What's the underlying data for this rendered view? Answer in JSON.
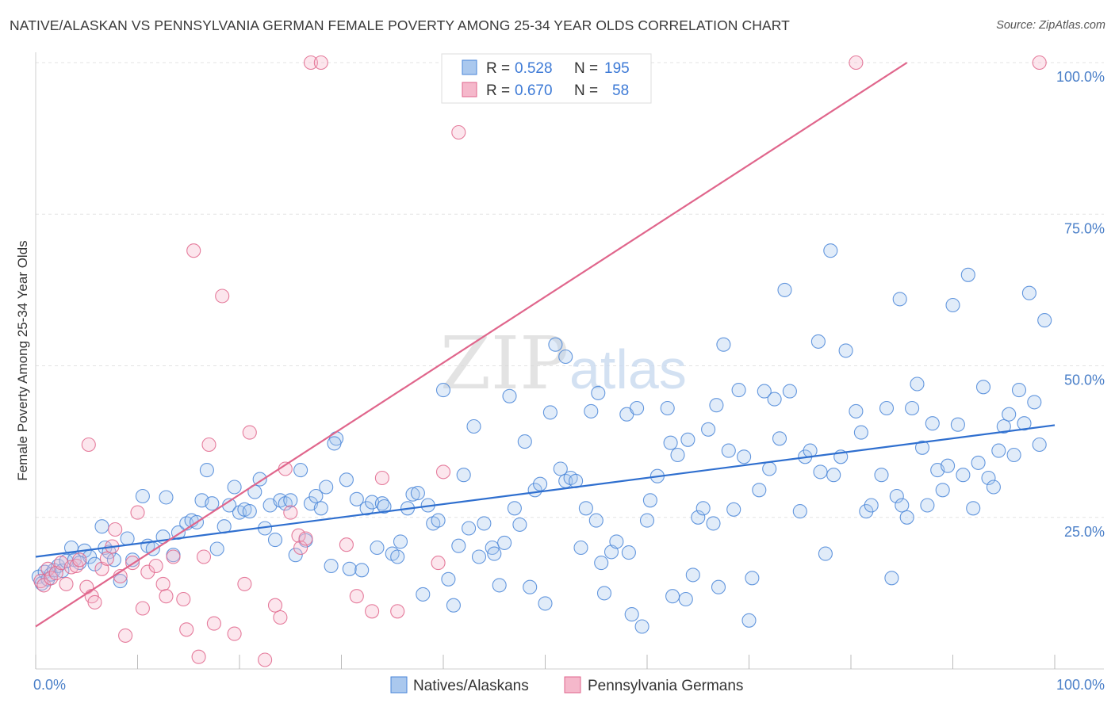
{
  "title": "NATIVE/ALASKAN VS PENNSYLVANIA GERMAN FEMALE POVERTY AMONG 25-34 YEAR OLDS CORRELATION CHART",
  "source": "Source: ZipAtlas.com",
  "watermark": {
    "zip": "ZIP",
    "atlas": "atlas"
  },
  "colors": {
    "blue": "#4a86d8",
    "blue_fill": "#aac8ee",
    "pink": "#e0668c",
    "pink_fill": "#f5b8cb",
    "tick": "#4a7fc8"
  },
  "legend": {
    "r_label": "R =",
    "n_label": "N =",
    "rows": [
      {
        "r": "0.528",
        "n": "195"
      },
      {
        "r": "0.670",
        "n": "58"
      }
    ]
  },
  "bottom_legend": [
    "Natives/Alaskans",
    "Pennsylvania Germans"
  ],
  "chart_data": {
    "type": "scatter",
    "title": "NATIVE/ALASKAN VS PENNSYLVANIA GERMAN FEMALE POVERTY AMONG 25-34 YEAR OLDS CORRELATION CHART",
    "xlabel": "",
    "ylabel": "Female Poverty Among 25-34 Year Olds",
    "xlim": [
      0,
      100
    ],
    "ylim": [
      0,
      100
    ],
    "x_tick_labels": [
      "0.0%",
      "100.0%"
    ],
    "y_tick_labels": [
      "25.0%",
      "50.0%",
      "75.0%",
      "100.0%"
    ],
    "y_ticks": [
      25,
      50,
      75,
      100
    ],
    "grid": true,
    "legend_position": "top-center",
    "series": [
      {
        "name": "Natives/Alaskans",
        "r": 0.528,
        "n": 195,
        "trend": {
          "x": [
            0,
            100
          ],
          "y": [
            18.5,
            40.2
          ]
        },
        "points": [
          [
            0.3,
            15.2
          ],
          [
            0.6,
            14.1
          ],
          [
            0.9,
            16.0
          ],
          [
            1.2,
            14.8
          ],
          [
            1.5,
            15.6
          ],
          [
            1.8,
            16.3
          ],
          [
            2.2,
            17.0
          ],
          [
            2.6,
            16.2
          ],
          [
            3.0,
            17.8
          ],
          [
            3.5,
            20.0
          ],
          [
            3.8,
            18.0
          ],
          [
            4.3,
            17.5
          ],
          [
            4.8,
            19.5
          ],
          [
            5.3,
            18.5
          ],
          [
            5.8,
            17.3
          ],
          [
            6.5,
            23.5
          ],
          [
            6.8,
            20.0
          ],
          [
            7.2,
            19.3
          ],
          [
            7.7,
            18.0
          ],
          [
            8.3,
            14.5
          ],
          [
            9.0,
            21.5
          ],
          [
            9.5,
            18.0
          ],
          [
            10.5,
            28.5
          ],
          [
            11.0,
            20.3
          ],
          [
            11.5,
            19.8
          ],
          [
            12.5,
            21.8
          ],
          [
            12.8,
            28.3
          ],
          [
            13.5,
            18.8
          ],
          [
            14.0,
            22.5
          ],
          [
            14.8,
            24.0
          ],
          [
            15.3,
            24.5
          ],
          [
            15.8,
            24.2
          ],
          [
            16.3,
            27.8
          ],
          [
            16.8,
            32.8
          ],
          [
            17.3,
            27.3
          ],
          [
            17.8,
            19.8
          ],
          [
            18.5,
            23.5
          ],
          [
            19.0,
            27.0
          ],
          [
            19.5,
            30.0
          ],
          [
            20.0,
            25.8
          ],
          [
            20.5,
            26.3
          ],
          [
            21.0,
            26.0
          ],
          [
            21.5,
            29.2
          ],
          [
            22.0,
            31.3
          ],
          [
            22.5,
            23.2
          ],
          [
            23.0,
            27.0
          ],
          [
            23.5,
            21.3
          ],
          [
            24.0,
            27.8
          ],
          [
            24.5,
            27.3
          ],
          [
            25.0,
            27.8
          ],
          [
            25.5,
            18.8
          ],
          [
            26.0,
            32.8
          ],
          [
            26.5,
            21.2
          ],
          [
            27.0,
            27.3
          ],
          [
            27.5,
            28.5
          ],
          [
            28.0,
            26.5
          ],
          [
            28.5,
            30.0
          ],
          [
            29.0,
            17.0
          ],
          [
            29.5,
            38.0
          ],
          [
            29.3,
            37.2
          ],
          [
            30.5,
            31.2
          ],
          [
            30.8,
            16.5
          ],
          [
            31.5,
            28.0
          ],
          [
            32.0,
            16.3
          ],
          [
            32.5,
            26.5
          ],
          [
            33.0,
            27.5
          ],
          [
            33.5,
            20.0
          ],
          [
            34.0,
            27.3
          ],
          [
            35.0,
            19.0
          ],
          [
            35.5,
            18.5
          ],
          [
            35.8,
            21.0
          ],
          [
            36.5,
            26.5
          ],
          [
            37.0,
            28.8
          ],
          [
            37.5,
            29.0
          ],
          [
            38.0,
            12.3
          ],
          [
            38.5,
            27.0
          ],
          [
            39.0,
            24.0
          ],
          [
            39.5,
            24.5
          ],
          [
            40.0,
            46.0
          ],
          [
            40.5,
            14.8
          ],
          [
            41.0,
            10.5
          ],
          [
            41.5,
            20.3
          ],
          [
            42.0,
            32.0
          ],
          [
            42.5,
            23.2
          ],
          [
            43.0,
            40.0
          ],
          [
            43.5,
            18.5
          ],
          [
            44.0,
            24.0
          ],
          [
            44.8,
            20.0
          ],
          [
            45.0,
            19.0
          ],
          [
            45.5,
            13.8
          ],
          [
            46.0,
            20.8
          ],
          [
            46.5,
            45.0
          ],
          [
            47.0,
            26.5
          ],
          [
            47.5,
            23.8
          ],
          [
            48.0,
            37.5
          ],
          [
            48.5,
            13.5
          ],
          [
            49.0,
            29.5
          ],
          [
            49.5,
            30.5
          ],
          [
            50.0,
            10.8
          ],
          [
            50.5,
            42.3
          ],
          [
            51.0,
            53.5
          ],
          [
            51.5,
            33.0
          ],
          [
            52.0,
            31.0
          ],
          [
            52.5,
            31.5
          ],
          [
            53.0,
            31.0
          ],
          [
            53.5,
            20.0
          ],
          [
            54.0,
            26.5
          ],
          [
            54.5,
            42.5
          ],
          [
            55.0,
            24.5
          ],
          [
            55.5,
            17.5
          ],
          [
            55.8,
            12.5
          ],
          [
            56.5,
            19.3
          ],
          [
            57.0,
            21.0
          ],
          [
            58.0,
            42.0
          ],
          [
            58.5,
            9.0
          ],
          [
            59.0,
            43.0
          ],
          [
            59.5,
            7.0
          ],
          [
            60.0,
            24.5
          ],
          [
            60.3,
            27.8
          ],
          [
            61.0,
            31.8
          ],
          [
            62.0,
            43.0
          ],
          [
            62.3,
            37.3
          ],
          [
            62.5,
            12.0
          ],
          [
            63.0,
            35.3
          ],
          [
            63.8,
            11.5
          ],
          [
            64.0,
            37.8
          ],
          [
            64.5,
            15.5
          ],
          [
            65.0,
            25.0
          ],
          [
            65.5,
            26.5
          ],
          [
            66.0,
            39.5
          ],
          [
            66.5,
            24.0
          ],
          [
            67.0,
            13.5
          ],
          [
            67.5,
            53.5
          ],
          [
            68.0,
            36.0
          ],
          [
            68.5,
            26.3
          ],
          [
            69.0,
            46.0
          ],
          [
            69.5,
            35.0
          ],
          [
            70.0,
            8.0
          ],
          [
            70.3,
            15.0
          ],
          [
            71.0,
            29.5
          ],
          [
            71.5,
            45.8
          ],
          [
            72.0,
            33.0
          ],
          [
            72.5,
            44.5
          ],
          [
            73.0,
            38.0
          ],
          [
            74.0,
            45.8
          ],
          [
            75.0,
            26.0
          ],
          [
            75.5,
            35.0
          ],
          [
            76.0,
            36.0
          ],
          [
            77.0,
            32.5
          ],
          [
            77.5,
            19.0
          ],
          [
            78.0,
            69.0
          ],
          [
            78.3,
            32.0
          ],
          [
            79.0,
            35.0
          ],
          [
            79.5,
            52.5
          ],
          [
            80.5,
            42.5
          ],
          [
            81.0,
            39.0
          ],
          [
            81.5,
            26.0
          ],
          [
            82.0,
            27.0
          ],
          [
            83.0,
            32.0
          ],
          [
            83.5,
            43.0
          ],
          [
            84.0,
            15.0
          ],
          [
            84.5,
            28.5
          ],
          [
            85.0,
            27.0
          ],
          [
            85.5,
            25.0
          ],
          [
            86.0,
            43.0
          ],
          [
            86.5,
            47.0
          ],
          [
            87.0,
            36.5
          ],
          [
            87.5,
            27.0
          ],
          [
            88.0,
            40.5
          ],
          [
            88.5,
            32.8
          ],
          [
            89.0,
            29.5
          ],
          [
            89.5,
            33.5
          ],
          [
            90.0,
            60.0
          ],
          [
            90.5,
            40.3
          ],
          [
            91.0,
            32.0
          ],
          [
            91.5,
            65.0
          ],
          [
            92.0,
            26.5
          ],
          [
            92.5,
            34.0
          ],
          [
            93.0,
            46.5
          ],
          [
            93.5,
            31.5
          ],
          [
            94.0,
            30.0
          ],
          [
            94.5,
            36.0
          ],
          [
            95.0,
            40.0
          ],
          [
            95.5,
            42.0
          ],
          [
            96.0,
            35.3
          ],
          [
            96.5,
            46.0
          ],
          [
            97.0,
            40.5
          ],
          [
            98.0,
            44.0
          ],
          [
            98.5,
            37.0
          ],
          [
            99.0,
            57.5
          ],
          [
            76.8,
            54.0
          ],
          [
            73.5,
            62.5
          ],
          [
            52.0,
            51.5
          ],
          [
            55.2,
            45.5
          ],
          [
            66.8,
            43.5
          ],
          [
            84.8,
            61.0
          ],
          [
            97.5,
            62.0
          ],
          [
            34.2,
            26.8
          ],
          [
            58.2,
            19.2
          ]
        ]
      },
      {
        "name": "Pennsylvania Germans",
        "r": 0.67,
        "n": 58,
        "trend": {
          "x": [
            0,
            85.5
          ],
          "y": [
            7.0,
            100.0
          ]
        },
        "points": [
          [
            0.5,
            14.5
          ],
          [
            0.8,
            13.8
          ],
          [
            1.2,
            16.5
          ],
          [
            1.5,
            15.0
          ],
          [
            2.0,
            15.8
          ],
          [
            2.5,
            17.5
          ],
          [
            3.0,
            14.0
          ],
          [
            3.5,
            16.8
          ],
          [
            4.0,
            17.0
          ],
          [
            4.3,
            18.0
          ],
          [
            5.0,
            13.5
          ],
          [
            5.5,
            12.0
          ],
          [
            5.8,
            11.0
          ],
          [
            6.5,
            16.5
          ],
          [
            7.0,
            18.2
          ],
          [
            7.5,
            20.2
          ],
          [
            7.8,
            23.0
          ],
          [
            8.3,
            15.3
          ],
          [
            8.8,
            5.5
          ],
          [
            9.5,
            17.5
          ],
          [
            10.0,
            25.8
          ],
          [
            10.5,
            10.0
          ],
          [
            11.0,
            16.0
          ],
          [
            11.8,
            17.0
          ],
          [
            12.5,
            14.0
          ],
          [
            12.8,
            12.0
          ],
          [
            13.5,
            18.5
          ],
          [
            14.5,
            11.5
          ],
          [
            14.8,
            6.5
          ],
          [
            15.5,
            69.0
          ],
          [
            16.0,
            2.0
          ],
          [
            16.5,
            18.5
          ],
          [
            17.0,
            37.0
          ],
          [
            17.5,
            7.5
          ],
          [
            18.3,
            61.5
          ],
          [
            19.5,
            5.8
          ],
          [
            20.5,
            14.0
          ],
          [
            21.0,
            39.0
          ],
          [
            22.5,
            1.5
          ],
          [
            23.5,
            10.5
          ],
          [
            24.0,
            8.5
          ],
          [
            24.5,
            33.0
          ],
          [
            25.0,
            25.8
          ],
          [
            25.8,
            22.0
          ],
          [
            26.0,
            20.0
          ],
          [
            26.5,
            21.5
          ],
          [
            27.0,
            100.0
          ],
          [
            28.0,
            100.0
          ],
          [
            30.5,
            20.5
          ],
          [
            31.5,
            12.0
          ],
          [
            33.0,
            9.5
          ],
          [
            34.0,
            31.5
          ],
          [
            35.5,
            9.5
          ],
          [
            39.5,
            17.5
          ],
          [
            40.0,
            32.5
          ],
          [
            41.5,
            88.5
          ],
          [
            55.5,
            100.0
          ],
          [
            80.5,
            100.0
          ],
          [
            98.5,
            100.0
          ],
          [
            5.2,
            37.0
          ]
        ]
      }
    ]
  }
}
